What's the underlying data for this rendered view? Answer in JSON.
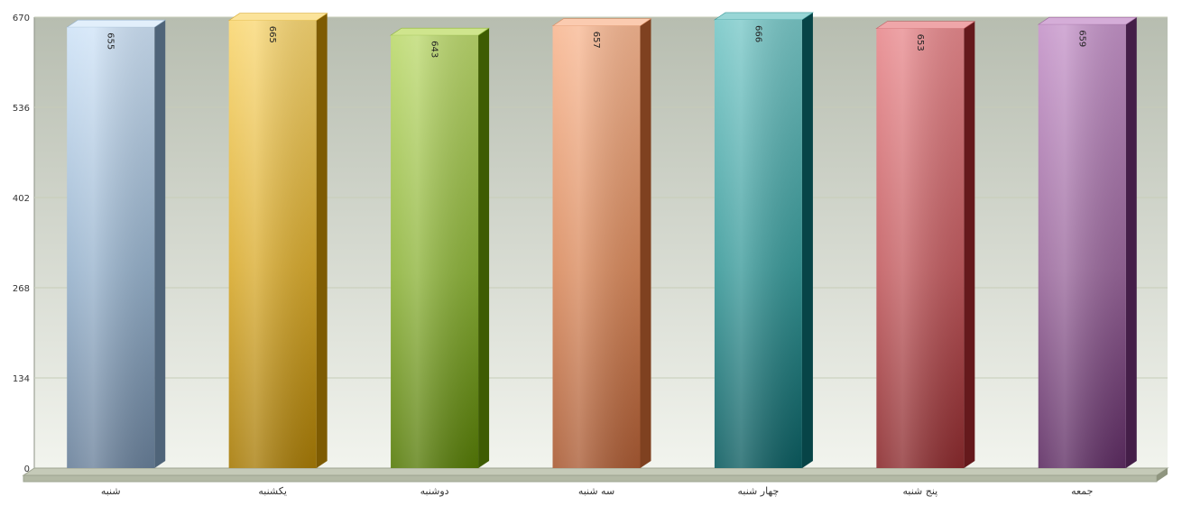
{
  "chart_data": {
    "type": "bar",
    "title": "",
    "xlabel": "",
    "ylabel": "",
    "categories": [
      "شنبه",
      "یکشنبه",
      "دوشنبه",
      "سه شنبه",
      "چهار شنبه",
      "پنج شنبه",
      "جمعه"
    ],
    "values": [
      655,
      665,
      643,
      657,
      666,
      653,
      659
    ],
    "ylim": [
      0,
      670
    ],
    "yticks": [
      "0",
      "134",
      "268",
      "402",
      "536",
      "670"
    ],
    "value_labels": [
      "655",
      "665",
      "643",
      "657",
      "666",
      "653",
      "659"
    ],
    "grid": true,
    "style": "3d-cylinder-bars",
    "colors": [
      {
        "light": "#cfe3f7",
        "mid": "#97b2cc",
        "dark": "#687f99",
        "side": "#4f6479",
        "top": "#e2effb"
      },
      {
        "light": "#f9d773",
        "mid": "#d9ab2e",
        "dark": "#a67a06",
        "side": "#7e5b02",
        "top": "#fbe39a"
      },
      {
        "light": "#bcd96e",
        "mid": "#8db33a",
        "dark": "#557a07",
        "side": "#3e5c03",
        "top": "#cfe58d"
      },
      {
        "light": "#f8b893",
        "mid": "#d98a5d",
        "dark": "#a95a33",
        "side": "#7f4120",
        "top": "#fbcbb0"
      },
      {
        "light": "#79c8c8",
        "mid": "#3a9a9a",
        "dark": "#0b5b5f",
        "side": "#074447",
        "top": "#98d6d6"
      },
      {
        "light": "#e88a8e",
        "mid": "#c25c60",
        "dark": "#8a2a2d",
        "side": "#65191c",
        "top": "#efa6a9"
      },
      {
        "light": "#c594c9",
        "mid": "#9a689c",
        "dark": "#5d2c62",
        "side": "#441e48",
        "top": "#d5add8"
      }
    ],
    "plot_background": [
      "#b7bdb0",
      "#f2f4ee"
    ]
  }
}
